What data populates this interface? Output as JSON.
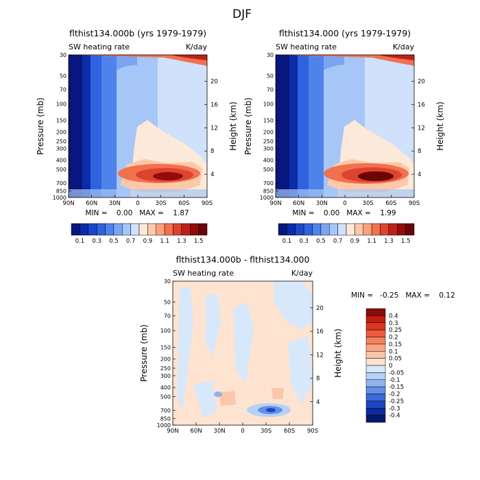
{
  "figure_title": "DJF",
  "chart_data": [
    {
      "id": "panel-a",
      "type": "heatmap",
      "title": "flthist134.000b (yrs 1979-1979)",
      "subtitle_left": "SW heating rate",
      "subtitle_right": "K/day",
      "ylabel": "Pressure (mb)",
      "ylabel_right": "Height (km)",
      "x_ticks": [
        "90N",
        "60N",
        "30N",
        "0",
        "30S",
        "60S",
        "90S"
      ],
      "y_ticks": [
        "30",
        "50",
        "70",
        "100",
        "150",
        "200",
        "250",
        "300",
        "400",
        "500",
        "700",
        "850",
        "1000"
      ],
      "y_ticks_right": [
        "20",
        "16",
        "12",
        "8",
        "4"
      ],
      "stats": "MIN =    0.00   MAX =    1.87",
      "colorbar": {
        "orientation": "horizontal",
        "labels": [
          "0.1",
          "0.3",
          "0.5",
          "0.7",
          "0.9",
          "1.1",
          "1.3",
          "1.5"
        ],
        "colors": [
          "#08167e",
          "#0b2ca8",
          "#1a47c9",
          "#2f62de",
          "#4f82ea",
          "#7aa5f2",
          "#a6c6f7",
          "#cfe1fb",
          "#fde9d9",
          "#fcc9a8",
          "#f9a07d",
          "#f1714f",
          "#dd4430",
          "#bc2016",
          "#930b0b",
          "#6a0606"
        ]
      }
    },
    {
      "id": "panel-b",
      "type": "heatmap",
      "title": "flthist134.000 (yrs 1979-1979)",
      "subtitle_left": "SW heating rate",
      "subtitle_right": "K/day",
      "ylabel": "Pressure (mb)",
      "ylabel_right": "Height (km)",
      "x_ticks": [
        "90N",
        "60N",
        "30N",
        "0",
        "30S",
        "60S",
        "90S"
      ],
      "y_ticks": [
        "30",
        "50",
        "70",
        "100",
        "150",
        "200",
        "250",
        "300",
        "400",
        "500",
        "700",
        "850",
        "1000"
      ],
      "y_ticks_right": [
        "20",
        "16",
        "12",
        "8",
        "4"
      ],
      "stats": "MIN =    0.00   MAX =    1.99",
      "colorbar": {
        "orientation": "horizontal",
        "labels": [
          "0.1",
          "0.3",
          "0.5",
          "0.7",
          "0.9",
          "1.1",
          "1.3",
          "1.5"
        ],
        "colors": [
          "#08167e",
          "#0b2ca8",
          "#1a47c9",
          "#2f62de",
          "#4f82ea",
          "#7aa5f2",
          "#a6c6f7",
          "#cfe1fb",
          "#fde9d9",
          "#fcc9a8",
          "#f9a07d",
          "#f1714f",
          "#dd4430",
          "#bc2016",
          "#930b0b",
          "#6a0606"
        ]
      }
    },
    {
      "id": "panel-diff",
      "type": "heatmap",
      "title": "flthist134.000b - flthist134.000",
      "subtitle_left": "SW heating rate",
      "subtitle_right": "K/day",
      "ylabel": "Pressure (mb)",
      "ylabel_right": "Height (km)",
      "x_ticks": [
        "90N",
        "60N",
        "30N",
        "0",
        "30S",
        "60S",
        "90S"
      ],
      "y_ticks": [
        "30",
        "50",
        "70",
        "100",
        "150",
        "200",
        "250",
        "300",
        "400",
        "500",
        "700",
        "850",
        "1000"
      ],
      "y_ticks_right": [
        "20",
        "16",
        "12",
        "8",
        "4"
      ],
      "stats": "MIN =   -0.25   MAX =    0.12",
      "colorbar": {
        "orientation": "vertical",
        "labels": [
          "0.4",
          "0.3",
          "0.25",
          "0.2",
          "0.15",
          "0.1",
          "0.05",
          "0",
          "-0.05",
          "-0.1",
          "-0.15",
          "-0.2",
          "-0.25",
          "-0.3",
          "-0.4"
        ],
        "colors": [
          "#8a0c0c",
          "#bf1d12",
          "#dc3620",
          "#ef5a3a",
          "#f5825f",
          "#f9a685",
          "#fbc6a9",
          "#fde3d0",
          "#d8e8fb",
          "#b6d1f6",
          "#8fb3ef",
          "#6390e6",
          "#3b6bdb",
          "#1d45c2",
          "#0c2a9c",
          "#07186f"
        ]
      }
    }
  ]
}
